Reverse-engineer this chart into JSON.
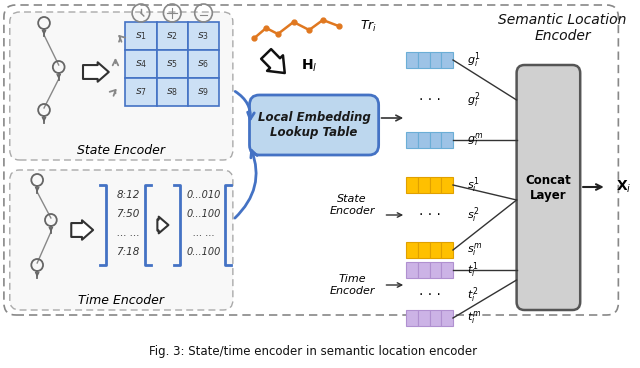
{
  "bg_color": "#ffffff",
  "fig_caption": "Fig. 3: State/time encoder in semantic location encoder",
  "title_semantic": "Semantic Location\nEncoder",
  "state_encoder_label": "State Encoder",
  "time_encoder_label": "Time Encoder",
  "local_embedding_label": "Local Embedding\nLookup Table",
  "concat_layer_label": "Concat\nLayer",
  "state_encoder_box_label": "State\nEncoder",
  "time_encoder_box_label": "Time\nEncoder",
  "traj_label": "$Tr_i$",
  "H_label": "$\\mathbf{H}_l$",
  "X_label": "$\\mathbf{X}_i$",
  "grid_color": "#4472c4",
  "grid_fill": "#cce0f5",
  "state_grid_cells": [
    [
      "$s_1$",
      "$s_2$",
      "$s_3$"
    ],
    [
      "$s_4$",
      "$s_5$",
      "$s_6$"
    ],
    [
      "$s_7$",
      "$s_8$",
      "$s_9$"
    ]
  ],
  "time_col1": [
    "8:12",
    "7:50",
    "... ...",
    "7:18"
  ],
  "time_col2": [
    "0...010",
    "0...100",
    "... ...",
    "0...100"
  ],
  "g_labels": [
    "$g_i^1$",
    "$g_i^2$",
    "$g_i^m$"
  ],
  "s_labels": [
    "$s_i^1$",
    "$s_i^2$",
    "$s_i^m$"
  ],
  "t_labels": [
    "$t_i^1$",
    "$t_i^2$",
    "$t_i^m$"
  ],
  "blue_bar_color": "#9dc3e6",
  "yellow_bar_color": "#ffc000",
  "purple_bar_color": "#ccb3e6",
  "traj_color": "#e07820",
  "arrow_blue": "#4472c4",
  "arrow_dark": "#333333",
  "outer_box_color": "#888888",
  "encoder_box_color": "#aaaaaa",
  "local_embed_fill": "#bdd7ee",
  "local_embed_edge": "#4472c4",
  "concat_fill": "#d0d0d0",
  "concat_edge": "#555555"
}
